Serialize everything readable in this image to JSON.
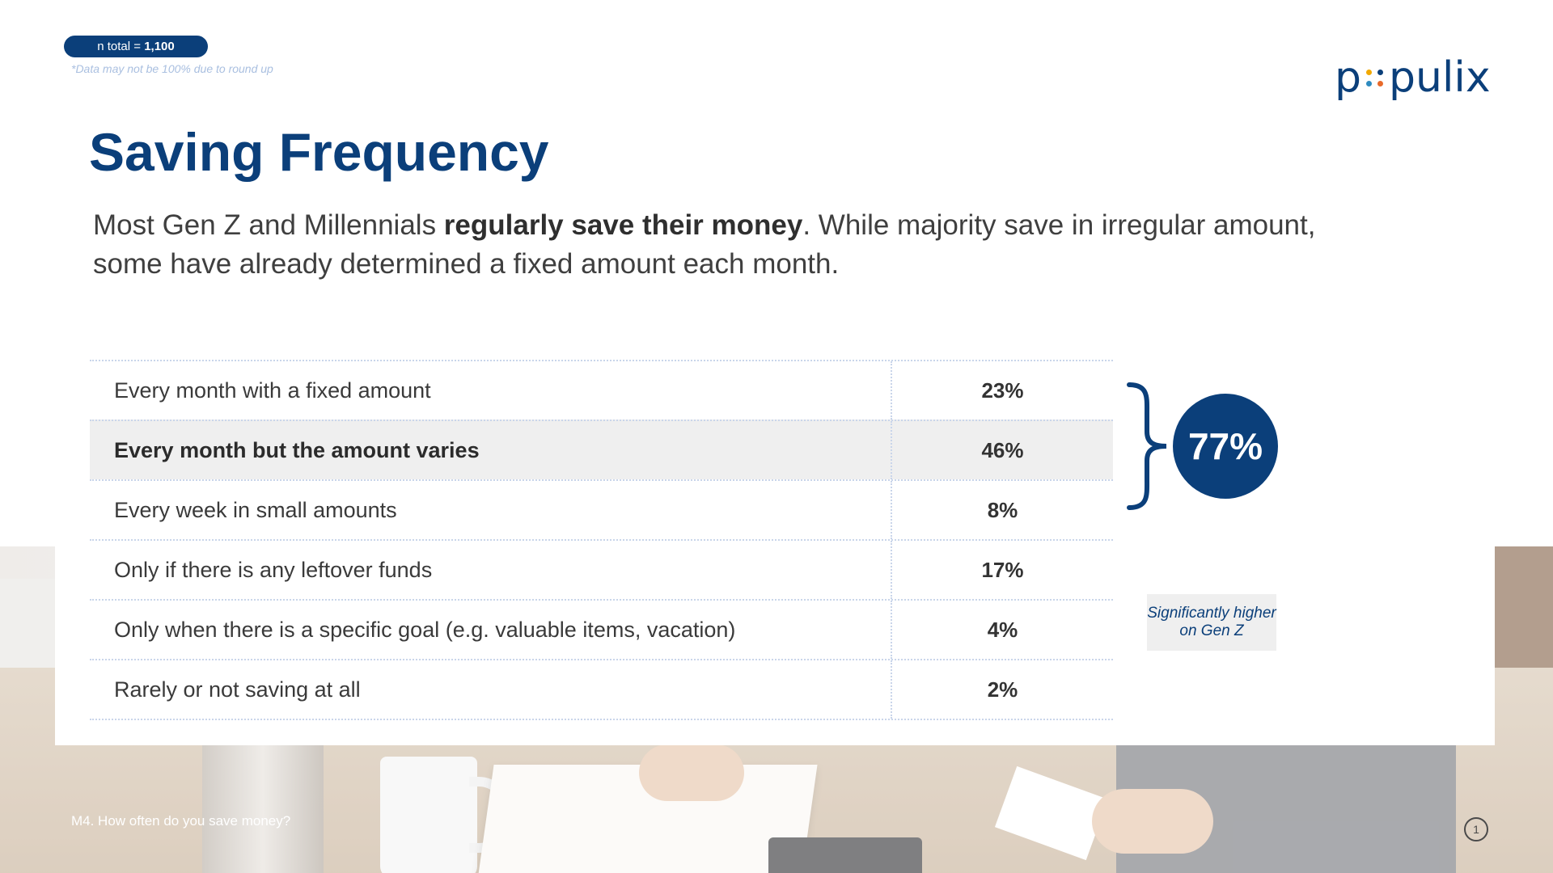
{
  "badge": {
    "prefix": "n total = ",
    "value": "1,100"
  },
  "disclaimer": "*Data may not be 100% due to round up",
  "logo": {
    "left": "p",
    "right": "pulix",
    "dot_colors": [
      "#f2a900",
      "#0b3f7a",
      "#2e8bc0",
      "#e86a2a"
    ]
  },
  "title": "Saving Frequency",
  "subtitle": {
    "part1": "Most Gen Z and Millennials ",
    "bold": "regularly save their money",
    "part2": ". While majority save in irregular amount, some have already determined a fixed amount each month."
  },
  "chart_data": {
    "type": "table",
    "categories": [
      "Every month with a fixed amount",
      "Every month but the amount varies",
      "Every week in small amounts",
      "Only if there is any leftover funds",
      "Only when there is a specific goal (e.g. valuable items, vacation)",
      "Rarely or not saving at all"
    ],
    "values": [
      23,
      46,
      8,
      17,
      4,
      2
    ],
    "value_labels": [
      "23%",
      "46%",
      "8%",
      "17%",
      "4%",
      "2%"
    ],
    "highlight_index": 1
  },
  "summary": {
    "value": "77%"
  },
  "note": "Significantly higher on Gen Z",
  "question": "M4. How often do you save money?",
  "page_number": "1",
  "colors": {
    "primary": "#0b3f7a",
    "highlight_row": "#efefef"
  }
}
